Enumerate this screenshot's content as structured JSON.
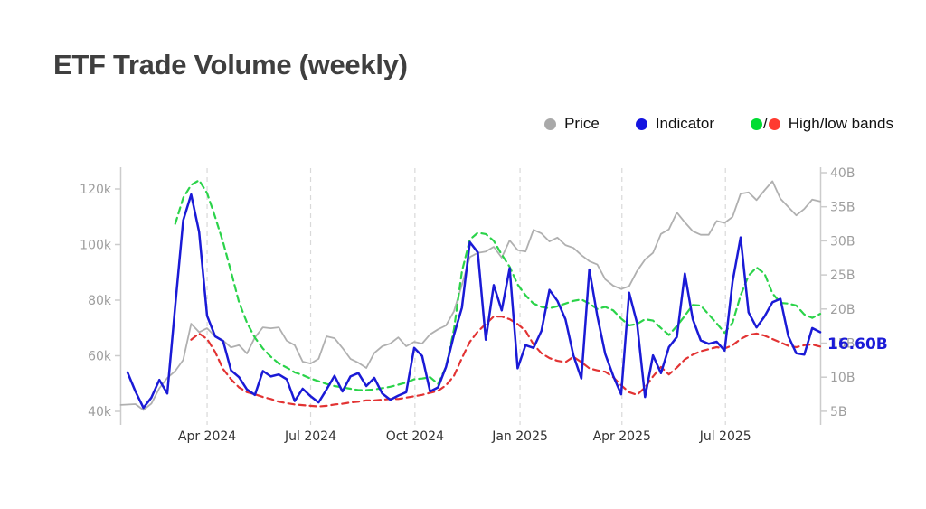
{
  "page": {
    "background": "#ffffff"
  },
  "title": {
    "text": "ETF Trade Volume (weekly)",
    "color": "#3f3f3f"
  },
  "legend": {
    "separator": "/",
    "items": [
      {
        "label": "Price",
        "color": "#a9a9a9"
      },
      {
        "label": "Indicator",
        "color": "#1414e0"
      },
      {
        "label": "High/low bands",
        "color_high": "#00dc32",
        "color_low": "#ff3b30"
      }
    ]
  },
  "chart_data": {
    "type": "line",
    "title": "ETF Trade Volume (weekly)",
    "x_interval": "weekly",
    "x_start_date": "2024-01-22",
    "x_end_date": "2025-09-22",
    "x_tick_labels": [
      "Apr 2024",
      "Jul 2024",
      "Oct 2024",
      "Jan 2025",
      "Apr 2025",
      "Jul 2025"
    ],
    "x_tick_weeks": [
      10.0,
      23.0,
      36.1,
      49.3,
      62.1,
      75.1
    ],
    "grid": "vertical-dashed-only",
    "legend_position": "top-right",
    "left_axis": {
      "unit": "k",
      "tick_labels": [
        "40k",
        "60k",
        "80k",
        "100k",
        "120k"
      ],
      "tick_values": [
        40,
        60,
        80,
        100,
        120
      ],
      "series": "Price"
    },
    "right_axis": {
      "unit": "B",
      "tick_labels": [
        "5B",
        "10B",
        "15B",
        "20B",
        "25B",
        "30B",
        "35B",
        "40B"
      ],
      "tick_values": [
        5,
        10,
        15,
        20,
        25,
        30,
        35,
        40
      ],
      "series": "Indicator, High/low bands"
    },
    "series": [
      {
        "name": "Price",
        "axis": "left",
        "unit": "k",
        "style": "solid",
        "color": "#b0b0b0",
        "values": [
          42.3,
          42.6,
          40.5,
          42.8,
          48.3,
          52,
          54.5,
          58.5,
          71.5,
          68.5,
          69.9,
          67,
          65.5,
          63,
          63.8,
          60.8,
          66.6,
          70.2,
          69.9,
          70.2,
          65.4,
          63.8,
          57.9,
          57.2,
          58.9,
          67,
          66.3,
          62.8,
          58.9,
          57.5,
          55.6,
          61,
          63.4,
          64.4,
          66.6,
          63.4,
          65,
          64.4,
          67.7,
          69.5,
          70.9,
          76,
          85.5,
          95.5,
          97,
          97.5,
          99.2,
          95.3,
          101.5,
          98,
          97.5,
          105.3,
          104,
          101.1,
          102.5,
          99.8,
          98.8,
          96.2,
          94,
          92.8,
          87.5,
          85.2,
          84,
          85,
          90.5,
          94.6,
          97,
          103.8,
          105.5,
          111.5,
          108,
          104.8,
          103.5,
          103.5,
          108.5,
          107.8,
          110,
          118.3,
          118.8,
          116,
          119.5,
          122.8,
          116.5,
          113.5,
          110.5,
          112.8,
          116.2,
          115.5
        ]
      },
      {
        "name": "Indicator",
        "axis": "right",
        "unit": "B",
        "style": "solid",
        "color": "#1a1ad6",
        "values": [
          10.7,
          7.9,
          5.5,
          7,
          9.6,
          7.6,
          20.5,
          33,
          36.8,
          31.3,
          19,
          16,
          15.3,
          11,
          10,
          8.2,
          7.4,
          10.9,
          10.1,
          10.4,
          9.7,
          6.5,
          8.3,
          7.2,
          6.3,
          8.2,
          10.2,
          7.9,
          10.1,
          10.6,
          8.7,
          9.9,
          7.6,
          6.7,
          7.3,
          7.8,
          14.3,
          13.1,
          7.9,
          8.5,
          11.5,
          16.2,
          20.2,
          29.8,
          28.3,
          15.5,
          23.5,
          19.8,
          26,
          11.3,
          14.7,
          14.3,
          16.8,
          22.8,
          21.2,
          18.5,
          13.2,
          9.8,
          25.8,
          19,
          13.4,
          10.2,
          7.5,
          22.4,
          17.9,
          7.1,
          13.2,
          10.6,
          14.4,
          15.9,
          25.2,
          18.5,
          15.4,
          14.9,
          15.2,
          13.9,
          24,
          30.5,
          19.5,
          17.3,
          18.9,
          21,
          21.5,
          16,
          13.5,
          13.3,
          17.2,
          16.6
        ]
      },
      {
        "name": "High band",
        "axis": "right",
        "unit": "B",
        "style": "dashed",
        "color": "#2bd34a",
        "values": [
          null,
          null,
          null,
          null,
          null,
          null,
          32.5,
          36.3,
          38.2,
          38.9,
          37,
          33.5,
          29.8,
          25.5,
          21,
          18,
          15.8,
          14.2,
          13,
          12,
          11.4,
          10.7,
          10.3,
          9.8,
          9.4,
          9,
          8.7,
          8.5,
          8.3,
          8.1,
          8.1,
          8.2,
          8.4,
          8.6,
          8.9,
          9.2,
          9.7,
          9.8,
          10,
          9,
          11.5,
          17,
          25.5,
          30.2,
          31.2,
          31,
          30,
          28,
          26.2,
          23.6,
          22,
          20.8,
          20.3,
          20.1,
          20.4,
          20.8,
          21.2,
          21.4,
          20.8,
          20,
          20.3,
          19.8,
          18.6,
          17.6,
          17.8,
          18.5,
          18.3,
          17.2,
          16.2,
          17.5,
          19,
          20.6,
          20.5,
          19.2,
          17.9,
          16.5,
          18,
          22,
          24.9,
          26.1,
          25.2,
          22.3,
          20.9,
          20.8,
          20.5,
          19.2,
          18.7,
          19.3
        ]
      },
      {
        "name": "Low band",
        "axis": "right",
        "unit": "B",
        "style": "dashed",
        "color": "#e23333",
        "values": [
          null,
          null,
          null,
          null,
          null,
          null,
          null,
          null,
          15.5,
          16.4,
          15.6,
          13.7,
          11.2,
          9.7,
          8.5,
          7.8,
          7.5,
          7.1,
          6.8,
          6.4,
          6.2,
          6,
          5.9,
          5.8,
          5.7,
          5.8,
          6,
          6.1,
          6.3,
          6.4,
          6.6,
          6.6,
          6.7,
          6.8,
          6.8,
          7,
          7.2,
          7.4,
          7.7,
          8,
          8.8,
          10.2,
          12.8,
          15.2,
          16.7,
          17.8,
          18.9,
          18.9,
          18.5,
          17.8,
          16.8,
          14.8,
          13.5,
          12.8,
          12.4,
          12.2,
          13,
          12.2,
          11.3,
          11,
          10.8,
          10,
          8.8,
          7.8,
          7.4,
          8.5,
          10.1,
          11.5,
          10.4,
          11.4,
          12.6,
          13.3,
          13.8,
          14.1,
          14.4,
          14.2,
          14.7,
          15.6,
          16.2,
          16.4,
          16.1,
          15.6,
          15.1,
          14.6,
          14.4,
          14.7,
          14.8,
          14.5
        ]
      }
    ],
    "last_value_label": {
      "text": "16.60B",
      "color": "#1b1bd8",
      "series": "Indicator"
    },
    "colors": {
      "grid": "#d9d9d9",
      "axis_line": "#cccccc",
      "y_tick_label": "#9e9e9e",
      "x_tick_label": "#333333"
    }
  }
}
